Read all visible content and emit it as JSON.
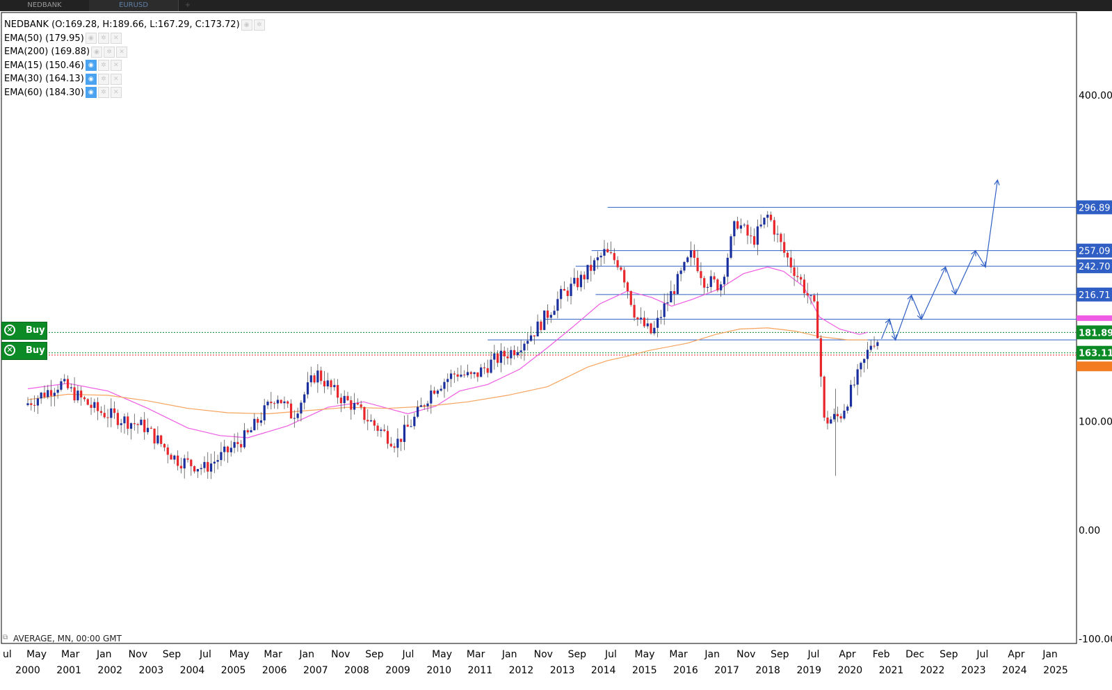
{
  "tabs": [
    {
      "label": "NEDBANK",
      "active": false
    },
    {
      "label": "EURUSD",
      "active": true
    }
  ],
  "tab_add_icon": "plus-icon",
  "legend": {
    "main": "NEDBANK (O:169.28, H:189.66, L:167.29, C:173.72)",
    "indicators": [
      {
        "label": "EMA(50) (179.95)",
        "visible": false
      },
      {
        "label": "EMA(200) (169.88)",
        "visible": false
      },
      {
        "label": "EMA(15) (150.46)",
        "visible": true
      },
      {
        "label": "EMA(30) (164.13)",
        "visible": true
      },
      {
        "label": "EMA(60) (184.30)",
        "visible": true
      }
    ]
  },
  "footer_label": "AVERAGE, MN, 00:00 GMT",
  "buy_buttons": [
    "Buy",
    "Buy"
  ],
  "colors": {
    "bull": "#1a2f9e",
    "bear": "#e8262b",
    "ema_pink": "#ef5be3",
    "ema_orange": "#f7a35c",
    "level_line": "#2f5fc4",
    "buy_green": "#0b8a25",
    "orange_tag": "#f47c20"
  },
  "chart_data": {
    "type": "candlestick",
    "symbol": "NEDBANK",
    "timeframe": "MN",
    "ylim": [
      -100,
      500
    ],
    "y_ticks": [
      {
        "value": 400,
        "label": "400.00"
      },
      {
        "value": 100,
        "label": "100.00"
      },
      {
        "value": 0,
        "label": "0.00"
      },
      {
        "value": -100,
        "label": "-100.00"
      }
    ],
    "x_month_labels": [
      "ul",
      "May",
      "Mar",
      "Jan",
      "Nov",
      "Sep",
      "Jul",
      "May",
      "Mar",
      "Jan",
      "Nov",
      "Sep",
      "Jul",
      "May",
      "Mar",
      "Jan",
      "Nov",
      "Sep",
      "Jul",
      "May",
      "Mar",
      "Jan",
      "Nov",
      "Sep",
      "Jul",
      "Apr",
      "Feb",
      "Dec",
      "Sep",
      "Jul",
      "Apr",
      "Jan"
    ],
    "x_year_labels": [
      "2000",
      "2001",
      "2002",
      "2003",
      "2004",
      "2005",
      "2006",
      "2007",
      "2008",
      "2009",
      "2010",
      "2011",
      "2012",
      "2013",
      "2014",
      "2015",
      "2016",
      "2017",
      "2018",
      "2019",
      "2020",
      "2021",
      "2022",
      "2023",
      "2024",
      "2025"
    ],
    "year_range": [
      2000,
      2025
    ],
    "horizontal_levels": [
      {
        "value": 296.89,
        "label": "296.89",
        "from_year": 2014.5
      },
      {
        "value": 257.09,
        "label": "257.09",
        "from_year": 2014.1
      },
      {
        "value": 242.7,
        "label": "242.70",
        "from_year": 2013.7
      },
      {
        "value": 216.71,
        "label": "216.71",
        "from_year": 2014.2
      },
      {
        "value": 194.0,
        "label": "",
        "from_year": 2012.9
      },
      {
        "value": 175.0,
        "label": "",
        "from_year": 2011.5
      }
    ],
    "price_tags": [
      {
        "value": 181.89,
        "label": "181.89",
        "color": "#0b8a25"
      },
      {
        "value": 163.11,
        "label": "163.11",
        "color": "#0b8a25"
      }
    ],
    "dotted_lines": [
      {
        "value": 181.89,
        "color": "#0b8a25"
      },
      {
        "value": 163.11,
        "color": "#0b8a25"
      },
      {
        "value": 161.0,
        "color": "#e8262b"
      }
    ],
    "projection_path": [
      [
        2021.35,
        176
      ],
      [
        2021.55,
        194
      ],
      [
        2021.7,
        175
      ],
      [
        2022.1,
        216
      ],
      [
        2022.35,
        194
      ],
      [
        2022.95,
        242
      ],
      [
        2023.2,
        217
      ],
      [
        2023.7,
        257
      ],
      [
        2023.95,
        242
      ],
      [
        2024.25,
        322
      ]
    ],
    "ema_pink": [
      [
        2000.0,
        130
      ],
      [
        2001.0,
        135
      ],
      [
        2002.0,
        128
      ],
      [
        2003.0,
        112
      ],
      [
        2004.0,
        94
      ],
      [
        2004.8,
        87
      ],
      [
        2005.5,
        85
      ],
      [
        2006.5,
        96
      ],
      [
        2007.5,
        113
      ],
      [
        2008.4,
        118
      ],
      [
        2009.0,
        112
      ],
      [
        2009.5,
        107
      ],
      [
        2010.2,
        114
      ],
      [
        2010.8,
        128
      ],
      [
        2011.5,
        134
      ],
      [
        2012.3,
        148
      ],
      [
        2013.0,
        168
      ],
      [
        2013.6,
        186
      ],
      [
        2014.3,
        208
      ],
      [
        2015.0,
        220
      ],
      [
        2015.6,
        214
      ],
      [
        2016.1,
        206
      ],
      [
        2016.6,
        212
      ],
      [
        2017.3,
        222
      ],
      [
        2017.9,
        236
      ],
      [
        2018.5,
        242
      ],
      [
        2018.9,
        238
      ],
      [
        2019.4,
        224
      ],
      [
        2019.8,
        196
      ],
      [
        2020.3,
        185
      ],
      [
        2020.8,
        180
      ],
      [
        2021.0,
        182
      ]
    ],
    "ema_orange": [
      [
        2000.0,
        120
      ],
      [
        2001.0,
        125
      ],
      [
        2002.0,
        124
      ],
      [
        2003.0,
        119
      ],
      [
        2004.0,
        112
      ],
      [
        2005.0,
        108
      ],
      [
        2006.0,
        107
      ],
      [
        2007.0,
        110
      ],
      [
        2008.0,
        113
      ],
      [
        2009.0,
        112
      ],
      [
        2010.0,
        114
      ],
      [
        2011.0,
        118
      ],
      [
        2012.0,
        124
      ],
      [
        2013.0,
        132
      ],
      [
        2014.0,
        150
      ],
      [
        2014.5,
        156
      ],
      [
        2015.0,
        160
      ],
      [
        2015.5,
        165
      ],
      [
        2016.5,
        172
      ],
      [
        2017.2,
        180
      ],
      [
        2017.8,
        185
      ],
      [
        2018.5,
        186
      ],
      [
        2019.2,
        183
      ],
      [
        2019.8,
        178
      ],
      [
        2020.5,
        175
      ],
      [
        2021.0,
        175
      ]
    ]
  }
}
